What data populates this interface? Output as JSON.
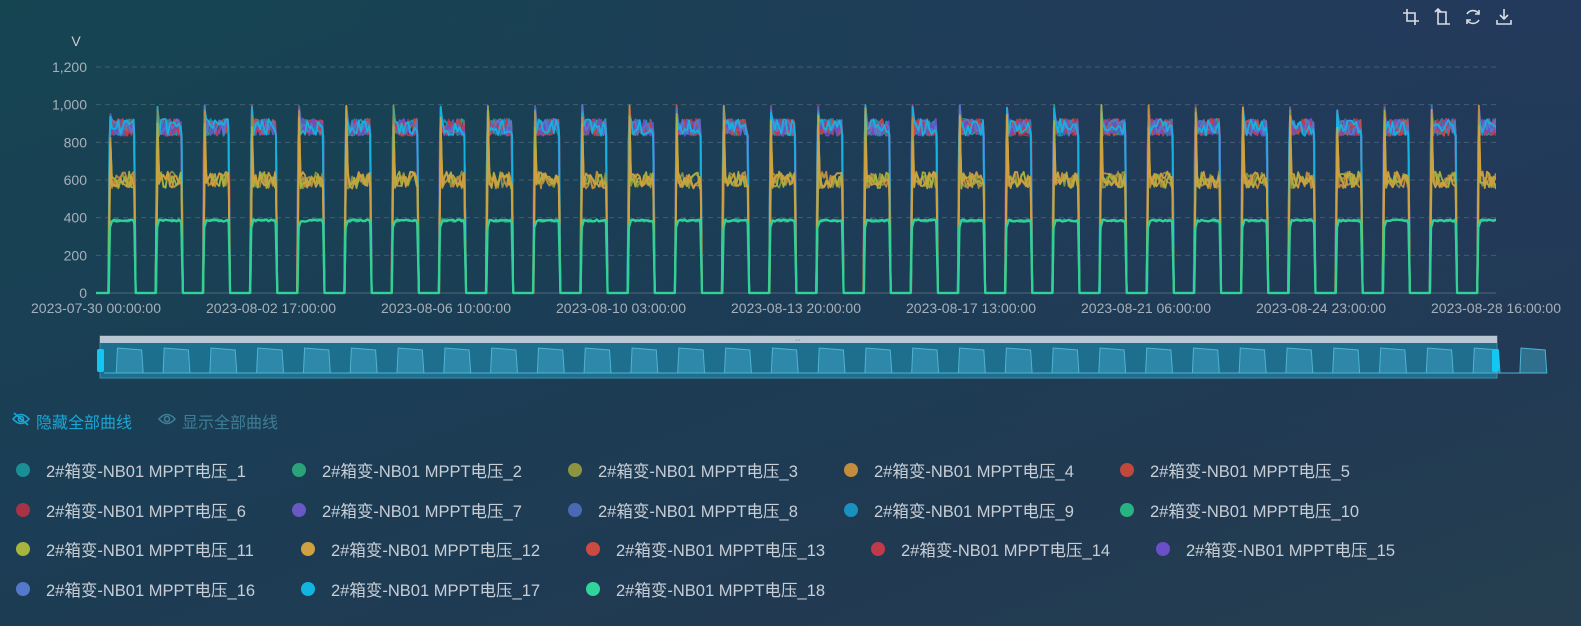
{
  "toolbox": {
    "tools": [
      {
        "name": "zoom-icon"
      },
      {
        "name": "zoom-reset-icon"
      },
      {
        "name": "refresh-icon"
      },
      {
        "name": "download-icon"
      }
    ]
  },
  "controls": {
    "hide_all_label": "隐藏全部曲线",
    "show_all_label": "显示全部曲线"
  },
  "chart_data": {
    "type": "line",
    "title": "",
    "ylabel": "V",
    "ylim": [
      0,
      1200
    ],
    "yticks": [
      0,
      200,
      400,
      600,
      800,
      1000,
      1200
    ],
    "ytick_labels": [
      "0",
      "200",
      "400",
      "600",
      "800",
      "1,000",
      "1,200"
    ],
    "x_start": "2023-07-30 00:00:00",
    "x_end": "2023-08-28 16:00:00",
    "xtick_labels": [
      "2023-07-30 00:00:00",
      "2023-08-02 17:00:00",
      "2023-08-06 10:00:00",
      "2023-08-10 03:00:00",
      "2023-08-13 20:00:00",
      "2023-08-17 13:00:00",
      "2023-08-21 06:00:00",
      "2023-08-24 23:00:00",
      "2023-08-28 16:00:00"
    ],
    "grid": true,
    "legend_position": "bottom",
    "daily_pattern": {
      "description_of_values": "each day: 0 V at night, rises around sunrise, falls around sunset",
      "typical_daytime_high_V": 880,
      "typical_daytime_mid_V": 600,
      "typical_daytime_low_V": 385,
      "peak_V": 1000
    },
    "series": [
      {
        "name": "2#箱变-NB01 MPPT电压_1",
        "color": "#1a8f96",
        "level": "high"
      },
      {
        "name": "2#箱变-NB01 MPPT电压_2",
        "color": "#2aa37a",
        "level": "high"
      },
      {
        "name": "2#箱变-NB01 MPPT电压_3",
        "color": "#8c9440",
        "level": "mid"
      },
      {
        "name": "2#箱变-NB01 MPPT电压_4",
        "color": "#c38d3e",
        "level": "mid"
      },
      {
        "name": "2#箱变-NB01 MPPT电压_5",
        "color": "#c0483d",
        "level": "high"
      },
      {
        "name": "2#箱变-NB01 MPPT电压_6",
        "color": "#a83346",
        "level": "high"
      },
      {
        "name": "2#箱变-NB01 MPPT电压_7",
        "color": "#6a58c4",
        "level": "high"
      },
      {
        "name": "2#箱变-NB01 MPPT电压_8",
        "color": "#4a68b4",
        "level": "high"
      },
      {
        "name": "2#箱变-NB01 MPPT电压_9",
        "color": "#1a92c0",
        "level": "high"
      },
      {
        "name": "2#箱变-NB01 MPPT电压_10",
        "color": "#28b482",
        "level": "low"
      },
      {
        "name": "2#箱变-NB01 MPPT电压_11",
        "color": "#a9b43e",
        "level": "mid"
      },
      {
        "name": "2#箱变-NB01 MPPT电压_12",
        "color": "#d1a040",
        "level": "mid"
      },
      {
        "name": "2#箱变-NB01 MPPT电压_13",
        "color": "#cb4a42",
        "level": "high"
      },
      {
        "name": "2#箱变-NB01 MPPT电压_14",
        "color": "#c03a4c",
        "level": "high"
      },
      {
        "name": "2#箱变-NB01 MPPT电压_15",
        "color": "#6a4fc8",
        "level": "high"
      },
      {
        "name": "2#箱变-NB01 MPPT电压_16",
        "color": "#5478cc",
        "level": "high"
      },
      {
        "name": "2#箱变-NB01 MPPT电压_17",
        "color": "#12b4e0",
        "level": "high"
      },
      {
        "name": "2#箱变-NB01 MPPT电压_18",
        "color": "#2fd59a",
        "level": "low"
      }
    ]
  }
}
